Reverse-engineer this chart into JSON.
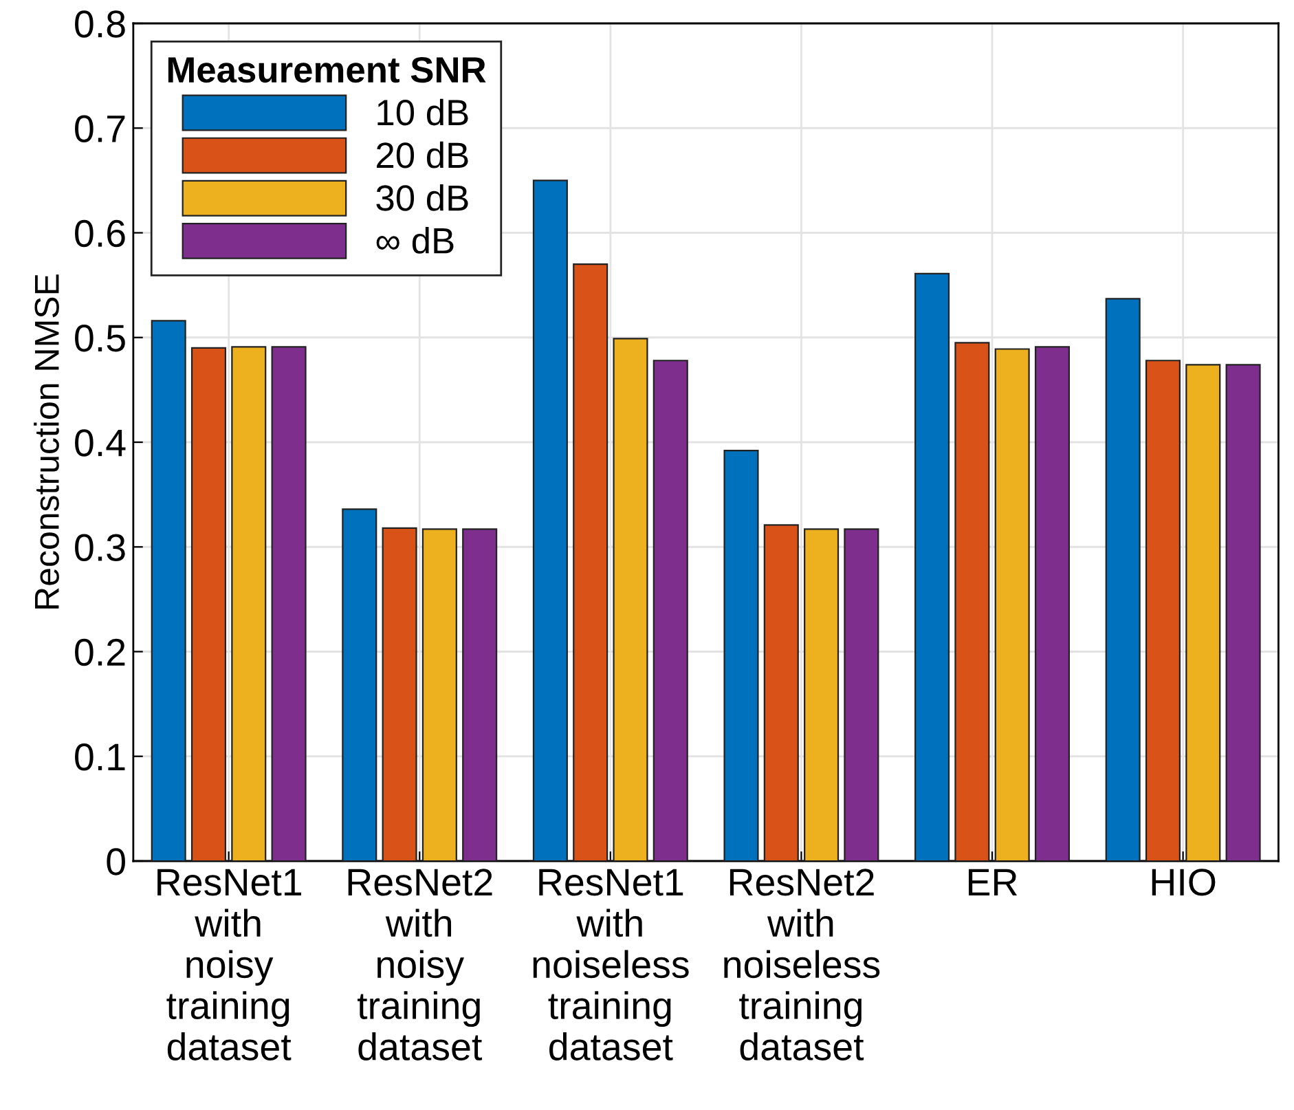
{
  "chart_data": {
    "type": "bar",
    "ylabel": "Reconstruction NMSE",
    "legend_title": "Measurement SNR",
    "categories": [
      "ResNet1\nwith\nnoisy\ntraining\ndataset",
      "ResNet2\nwith\nnoisy\ntraining\ndataset",
      "ResNet1\nwith\nnoiseless\ntraining\ndataset",
      "ResNet2\nwith\nnoiseless\ntraining\ndataset",
      "ER",
      "HIO"
    ],
    "series": [
      {
        "name": "10 dB",
        "color": "#0072bd",
        "values": [
          0.516,
          0.336,
          0.65,
          0.392,
          0.561,
          0.537
        ]
      },
      {
        "name": "20 dB",
        "color": "#d95319",
        "values": [
          0.49,
          0.318,
          0.57,
          0.321,
          0.495,
          0.478
        ]
      },
      {
        "name": "30 dB",
        "color": "#edb120",
        "values": [
          0.491,
          0.317,
          0.499,
          0.317,
          0.489,
          0.474
        ]
      },
      {
        "name": "∞ dB",
        "color": "#7e2f8e",
        "values": [
          0.491,
          0.317,
          0.478,
          0.317,
          0.491,
          0.474
        ]
      }
    ],
    "ylim": [
      0,
      0.8
    ],
    "yticks": [
      0,
      0.1,
      0.2,
      0.3,
      0.4,
      0.5,
      0.6,
      0.7,
      0.8
    ],
    "grid": true,
    "legend": "top left"
  }
}
